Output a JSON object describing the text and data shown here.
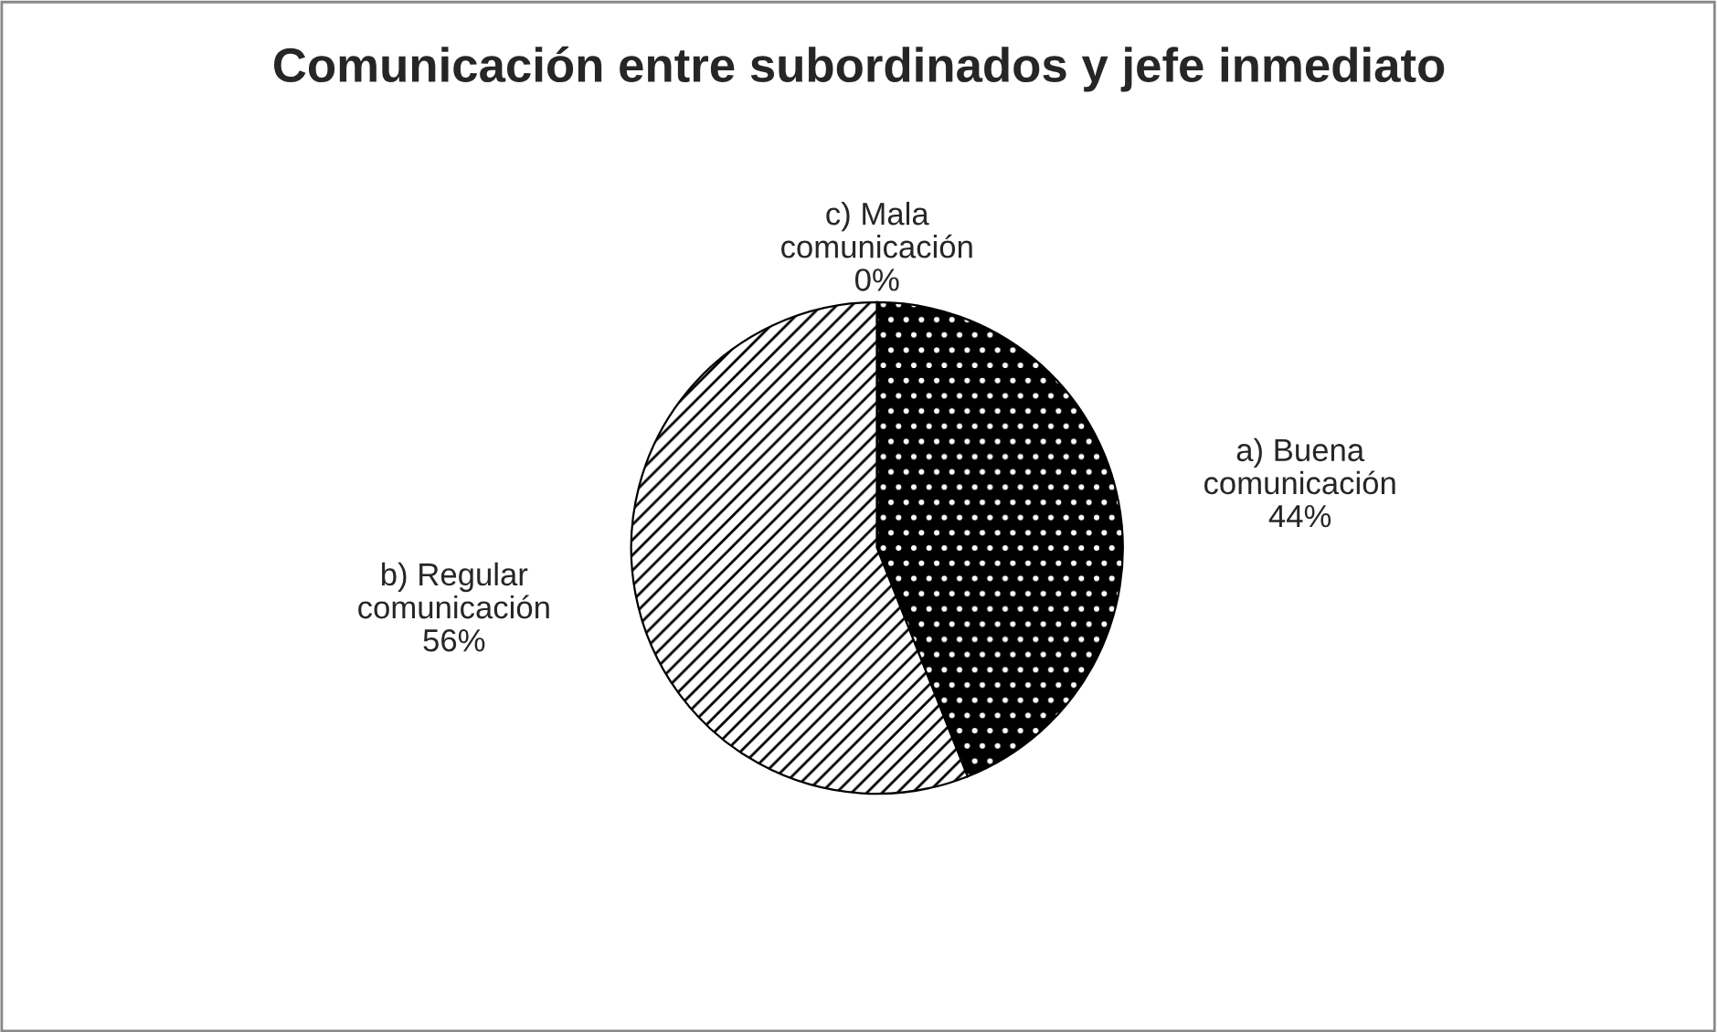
{
  "chart_data": {
    "type": "pie",
    "title": "Comunicación entre subordinados y jefe inmediato",
    "categories": [
      "a) Buena comunicación",
      "b) Regular comunicación",
      "c) Mala comunicación"
    ],
    "values": [
      44,
      56,
      0
    ],
    "value_labels": [
      "44%",
      "56%",
      "0%"
    ],
    "colors": [
      "#000000",
      "#000000",
      "#808080"
    ],
    "legend": false
  }
}
